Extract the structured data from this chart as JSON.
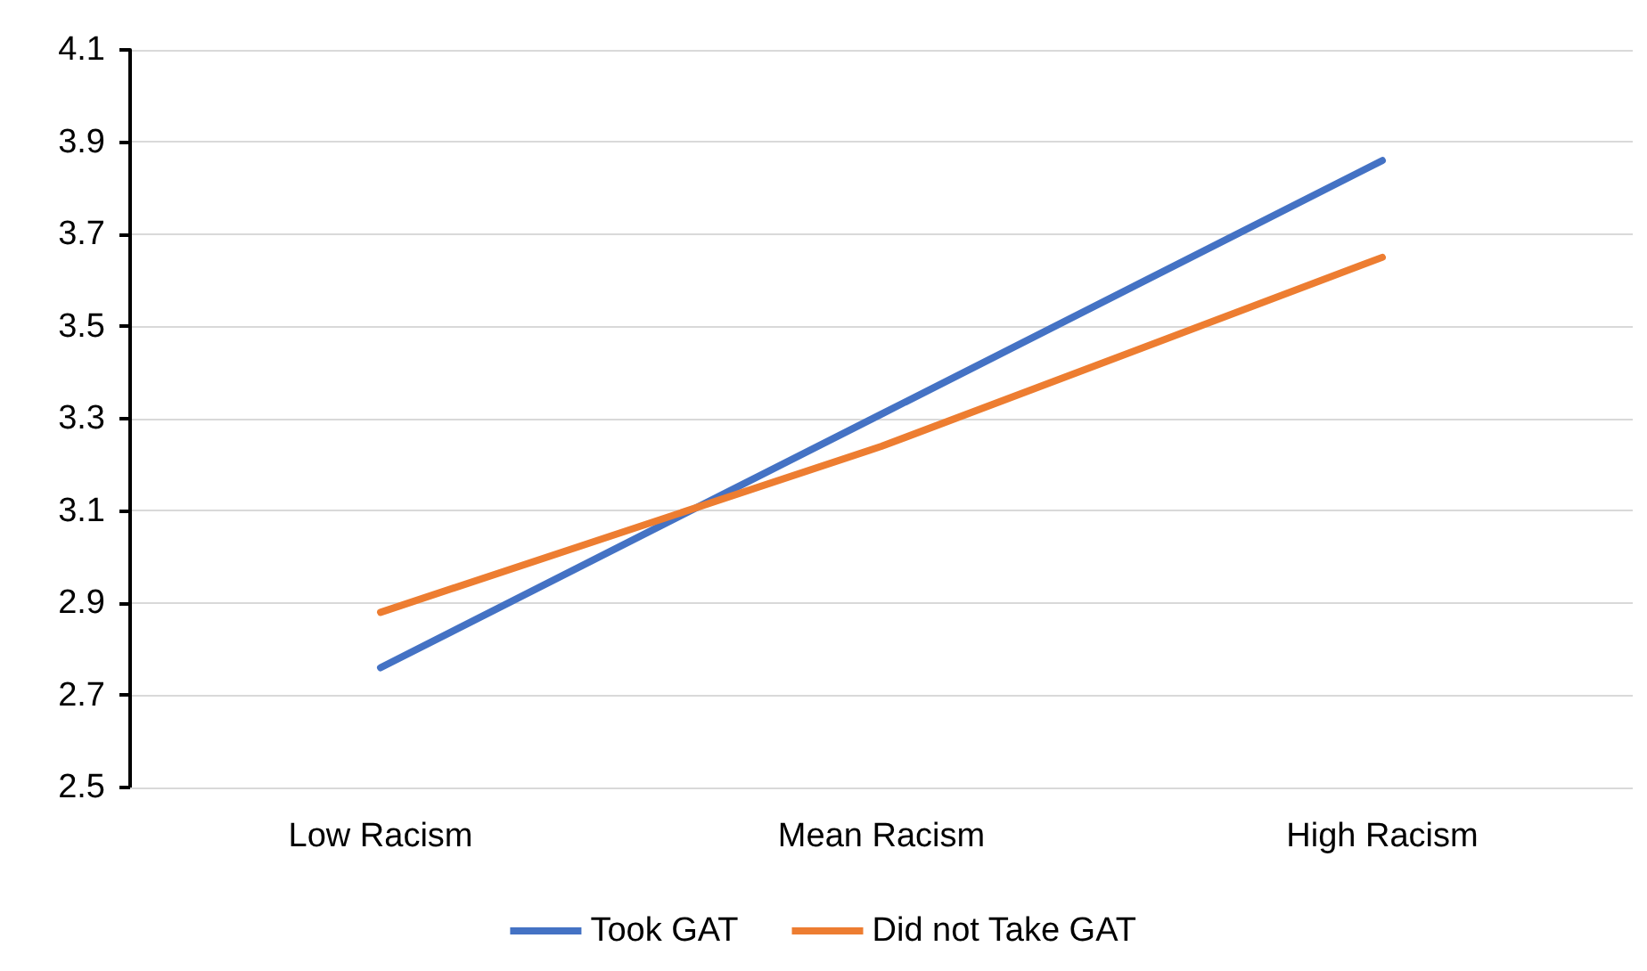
{
  "chart_data": {
    "type": "line",
    "categories": [
      "Low Racism",
      "Mean Racism",
      "High Racism"
    ],
    "series": [
      {
        "name": "Took GAT",
        "color": "#4472c4",
        "values": [
          2.76,
          3.31,
          3.86
        ]
      },
      {
        "name": "Did not Take GAT",
        "color": "#ed7d31",
        "values": [
          2.88,
          3.24,
          3.65
        ]
      }
    ],
    "ylim": [
      2.5,
      4.1
    ],
    "yticks": [
      2.5,
      2.7,
      2.9,
      3.1,
      3.3,
      3.5,
      3.7,
      3.9,
      4.1
    ],
    "grid": "y",
    "legend": "bottom",
    "marker": "none",
    "line_style": "solid"
  }
}
